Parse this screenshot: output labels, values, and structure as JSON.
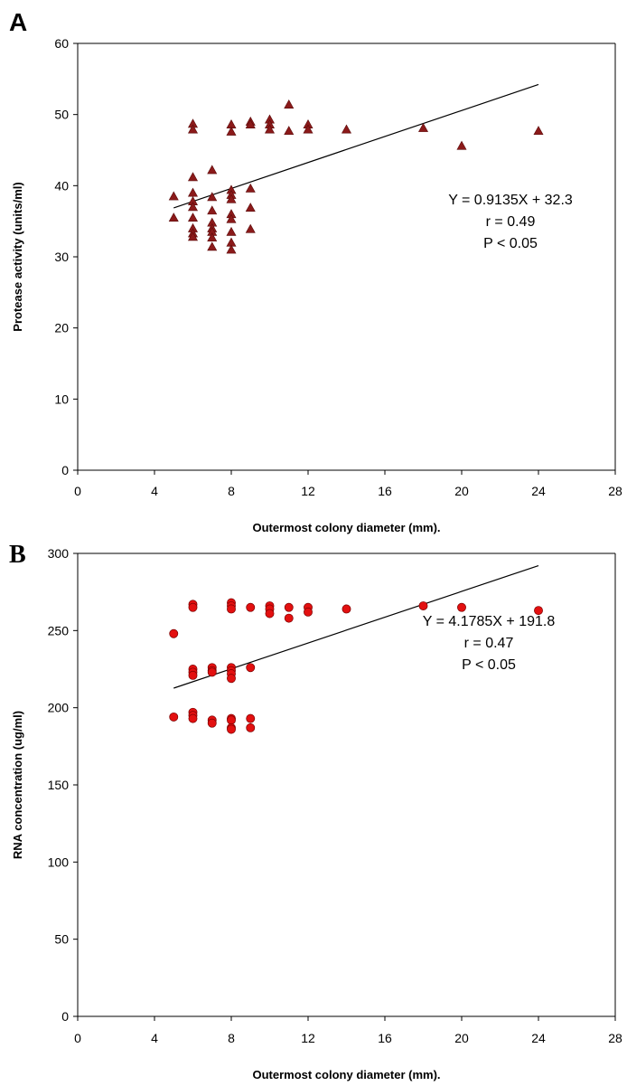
{
  "chart_data": [
    {
      "panel": "A",
      "type": "scatter",
      "xlabel": "Outermost colony diameter (mm).",
      "ylabel": "Protease activity (units/ml)",
      "xlim": [
        0,
        28
      ],
      "ylim": [
        0,
        60
      ],
      "xticks": [
        0,
        4,
        8,
        12,
        16,
        20,
        24,
        28
      ],
      "yticks": [
        0,
        10,
        20,
        30,
        40,
        50,
        60
      ],
      "marker": "triangle",
      "marker_color": "#8b1a1a",
      "trendline": {
        "slope": 0.9135,
        "intercept": 32.3,
        "x_range": [
          5,
          24
        ]
      },
      "annotations": [
        "Y = 0.9135X + 32.3",
        "r = 0.49",
        "P < 0.05"
      ],
      "points": [
        [
          5,
          38.5
        ],
        [
          5,
          35.5
        ],
        [
          6,
          48.7
        ],
        [
          6,
          47.9
        ],
        [
          6,
          41.2
        ],
        [
          6,
          39.0
        ],
        [
          6,
          37.8
        ],
        [
          6,
          37.0
        ],
        [
          6,
          35.5
        ],
        [
          6,
          34.0
        ],
        [
          6,
          33.3
        ],
        [
          6,
          32.8
        ],
        [
          7,
          42.2
        ],
        [
          7,
          38.4
        ],
        [
          7,
          36.5
        ],
        [
          7,
          34.8
        ],
        [
          7,
          34.0
        ],
        [
          7,
          33.5
        ],
        [
          7,
          32.7
        ],
        [
          7,
          31.4
        ],
        [
          8,
          48.6
        ],
        [
          8,
          47.6
        ],
        [
          8,
          39.4
        ],
        [
          8,
          38.7
        ],
        [
          8,
          38.1
        ],
        [
          8,
          36.0
        ],
        [
          8,
          35.3
        ],
        [
          8,
          33.5
        ],
        [
          8,
          32.0
        ],
        [
          8,
          31.0
        ],
        [
          9,
          49.0
        ],
        [
          9,
          48.6
        ],
        [
          9,
          39.6
        ],
        [
          9,
          36.9
        ],
        [
          9,
          33.9
        ],
        [
          10,
          49.3
        ],
        [
          10,
          48.6
        ],
        [
          10,
          47.9
        ],
        [
          11,
          51.4
        ],
        [
          11,
          47.7
        ],
        [
          12,
          48.6
        ],
        [
          12,
          47.9
        ],
        [
          14,
          47.9
        ],
        [
          18,
          48.1
        ],
        [
          20,
          45.6
        ],
        [
          24,
          47.7
        ]
      ]
    },
    {
      "panel": "B",
      "type": "scatter",
      "xlabel": "Outermost colony diameter (mm).",
      "ylabel": "RNA concentration (ug/ml)",
      "xlim": [
        0,
        28
      ],
      "ylim": [
        0,
        300
      ],
      "xticks": [
        0,
        4,
        8,
        12,
        16,
        20,
        24,
        28
      ],
      "yticks": [
        0,
        50,
        100,
        150,
        200,
        250,
        300
      ],
      "marker": "circle",
      "marker_color": "#e31010",
      "trendline": {
        "slope": 4.1785,
        "intercept": 191.8,
        "x_range": [
          5,
          24
        ]
      },
      "annotations": [
        "Y = 4.1785X + 191.8",
        "r = 0.47",
        "P < 0.05"
      ],
      "points": [
        [
          5,
          248
        ],
        [
          5,
          194
        ],
        [
          6,
          267
        ],
        [
          6,
          265
        ],
        [
          6,
          225
        ],
        [
          6,
          223
        ],
        [
          6,
          221
        ],
        [
          6,
          197
        ],
        [
          6,
          195
        ],
        [
          6,
          193
        ],
        [
          7,
          226
        ],
        [
          7,
          224
        ],
        [
          7,
          223
        ],
        [
          7,
          192
        ],
        [
          7,
          190
        ],
        [
          8,
          268
        ],
        [
          8,
          266
        ],
        [
          8,
          264
        ],
        [
          8,
          226
        ],
        [
          8,
          224
        ],
        [
          8,
          222
        ],
        [
          8,
          219
        ],
        [
          8,
          193
        ],
        [
          8,
          192
        ],
        [
          8,
          187
        ],
        [
          8,
          186
        ],
        [
          9,
          265
        ],
        [
          9,
          226
        ],
        [
          9,
          193
        ],
        [
          9,
          187
        ],
        [
          10,
          266
        ],
        [
          10,
          264
        ],
        [
          10,
          261
        ],
        [
          11,
          265
        ],
        [
          11,
          258
        ],
        [
          12,
          265
        ],
        [
          12,
          262
        ],
        [
          14,
          264
        ],
        [
          18,
          266
        ],
        [
          20,
          265
        ],
        [
          24,
          263
        ]
      ]
    }
  ],
  "panels": [
    {
      "letter": "A"
    },
    {
      "letter": "B"
    }
  ]
}
